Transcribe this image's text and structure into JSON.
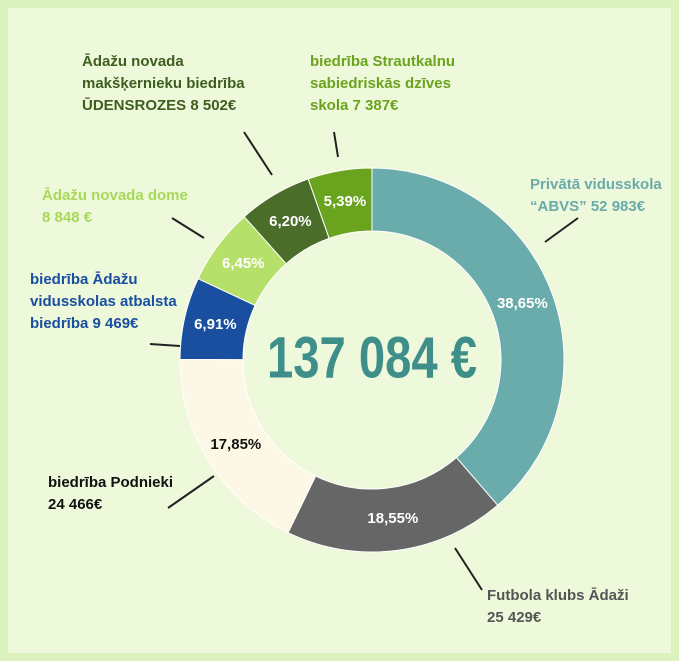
{
  "chart_data": {
    "type": "pie",
    "donut": true,
    "center_text": "137 084 €",
    "categories": [
      "Privātā vidusskola\n“ABVS” 52 983€",
      "Futbola klubs Ādaži\n25 429€",
      "biedrība Podnieki\n24 466€",
      "biedrība Ādažu\nvidusskolas atbalsta\nbiedrība 9 469€",
      "Ādažu novada dome\n8 848 €",
      "Ādažu novada\nmakšķernieku biedrība\nŪDENSROZES 8 502€",
      "biedrība Strautkalnu\nsabiedriskās dzīves\nskola 7 387€"
    ],
    "values": [
      38.65,
      18.55,
      17.85,
      6.91,
      6.45,
      6.2,
      5.39
    ],
    "value_labels": [
      "38,65%",
      "18,55%",
      "17,85%",
      "6,91%",
      "6,45%",
      "6,20%",
      "5,39%"
    ],
    "colors": [
      "#6aabab",
      "#666666",
      "#fdf8e6",
      "#1a4fa0",
      "#b5e06a",
      "#4a6e2a",
      "#6aa31e"
    ]
  }
}
